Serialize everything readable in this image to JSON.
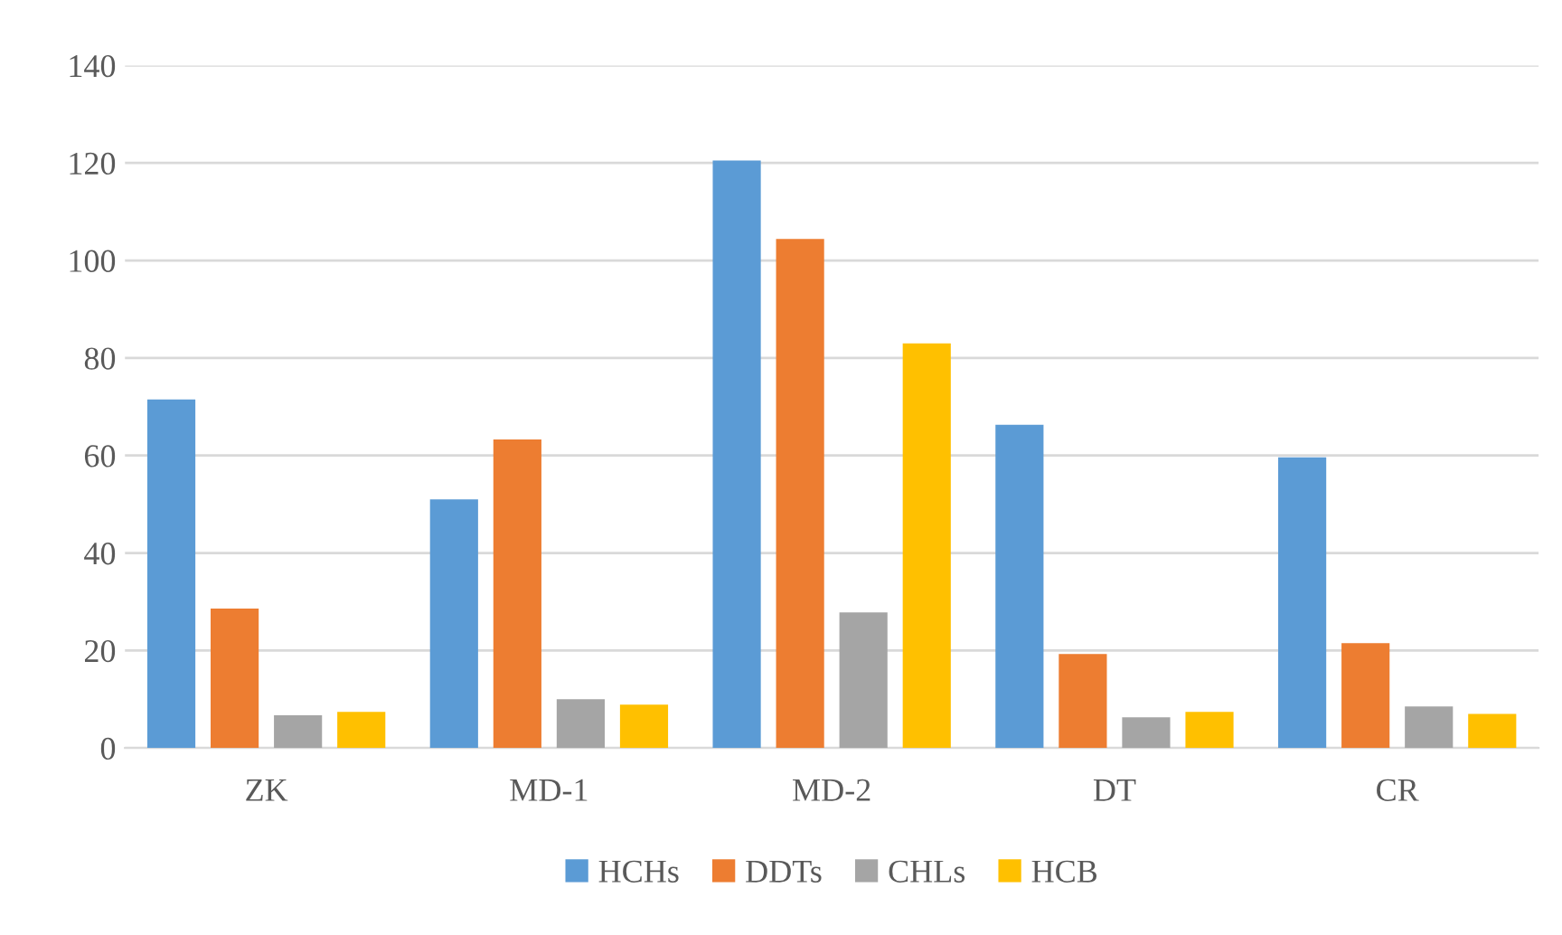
{
  "chart_data": {
    "type": "bar",
    "categories": [
      "ZK",
      "MD-1",
      "MD-2",
      "DT",
      "CR"
    ],
    "series": [
      {
        "name": "HCHs",
        "color": "#5b9bd5",
        "values": [
          71.5,
          51,
          120.5,
          66.3,
          59.6
        ]
      },
      {
        "name": "DDTs",
        "color": "#ed7d31",
        "values": [
          28.6,
          63.3,
          104.4,
          19.3,
          21.5
        ]
      },
      {
        "name": "CHLs",
        "color": "#a5a5a5",
        "values": [
          6.7,
          10,
          27.8,
          6.3,
          8.5
        ]
      },
      {
        "name": "HCB",
        "color": "#ffc000",
        "values": [
          7.4,
          8.9,
          83,
          7.4,
          7
        ]
      }
    ],
    "ylim": [
      0,
      140
    ],
    "yticks": [
      0,
      20,
      40,
      60,
      80,
      100,
      120,
      140
    ],
    "grid": "y",
    "legend": "bottom"
  }
}
